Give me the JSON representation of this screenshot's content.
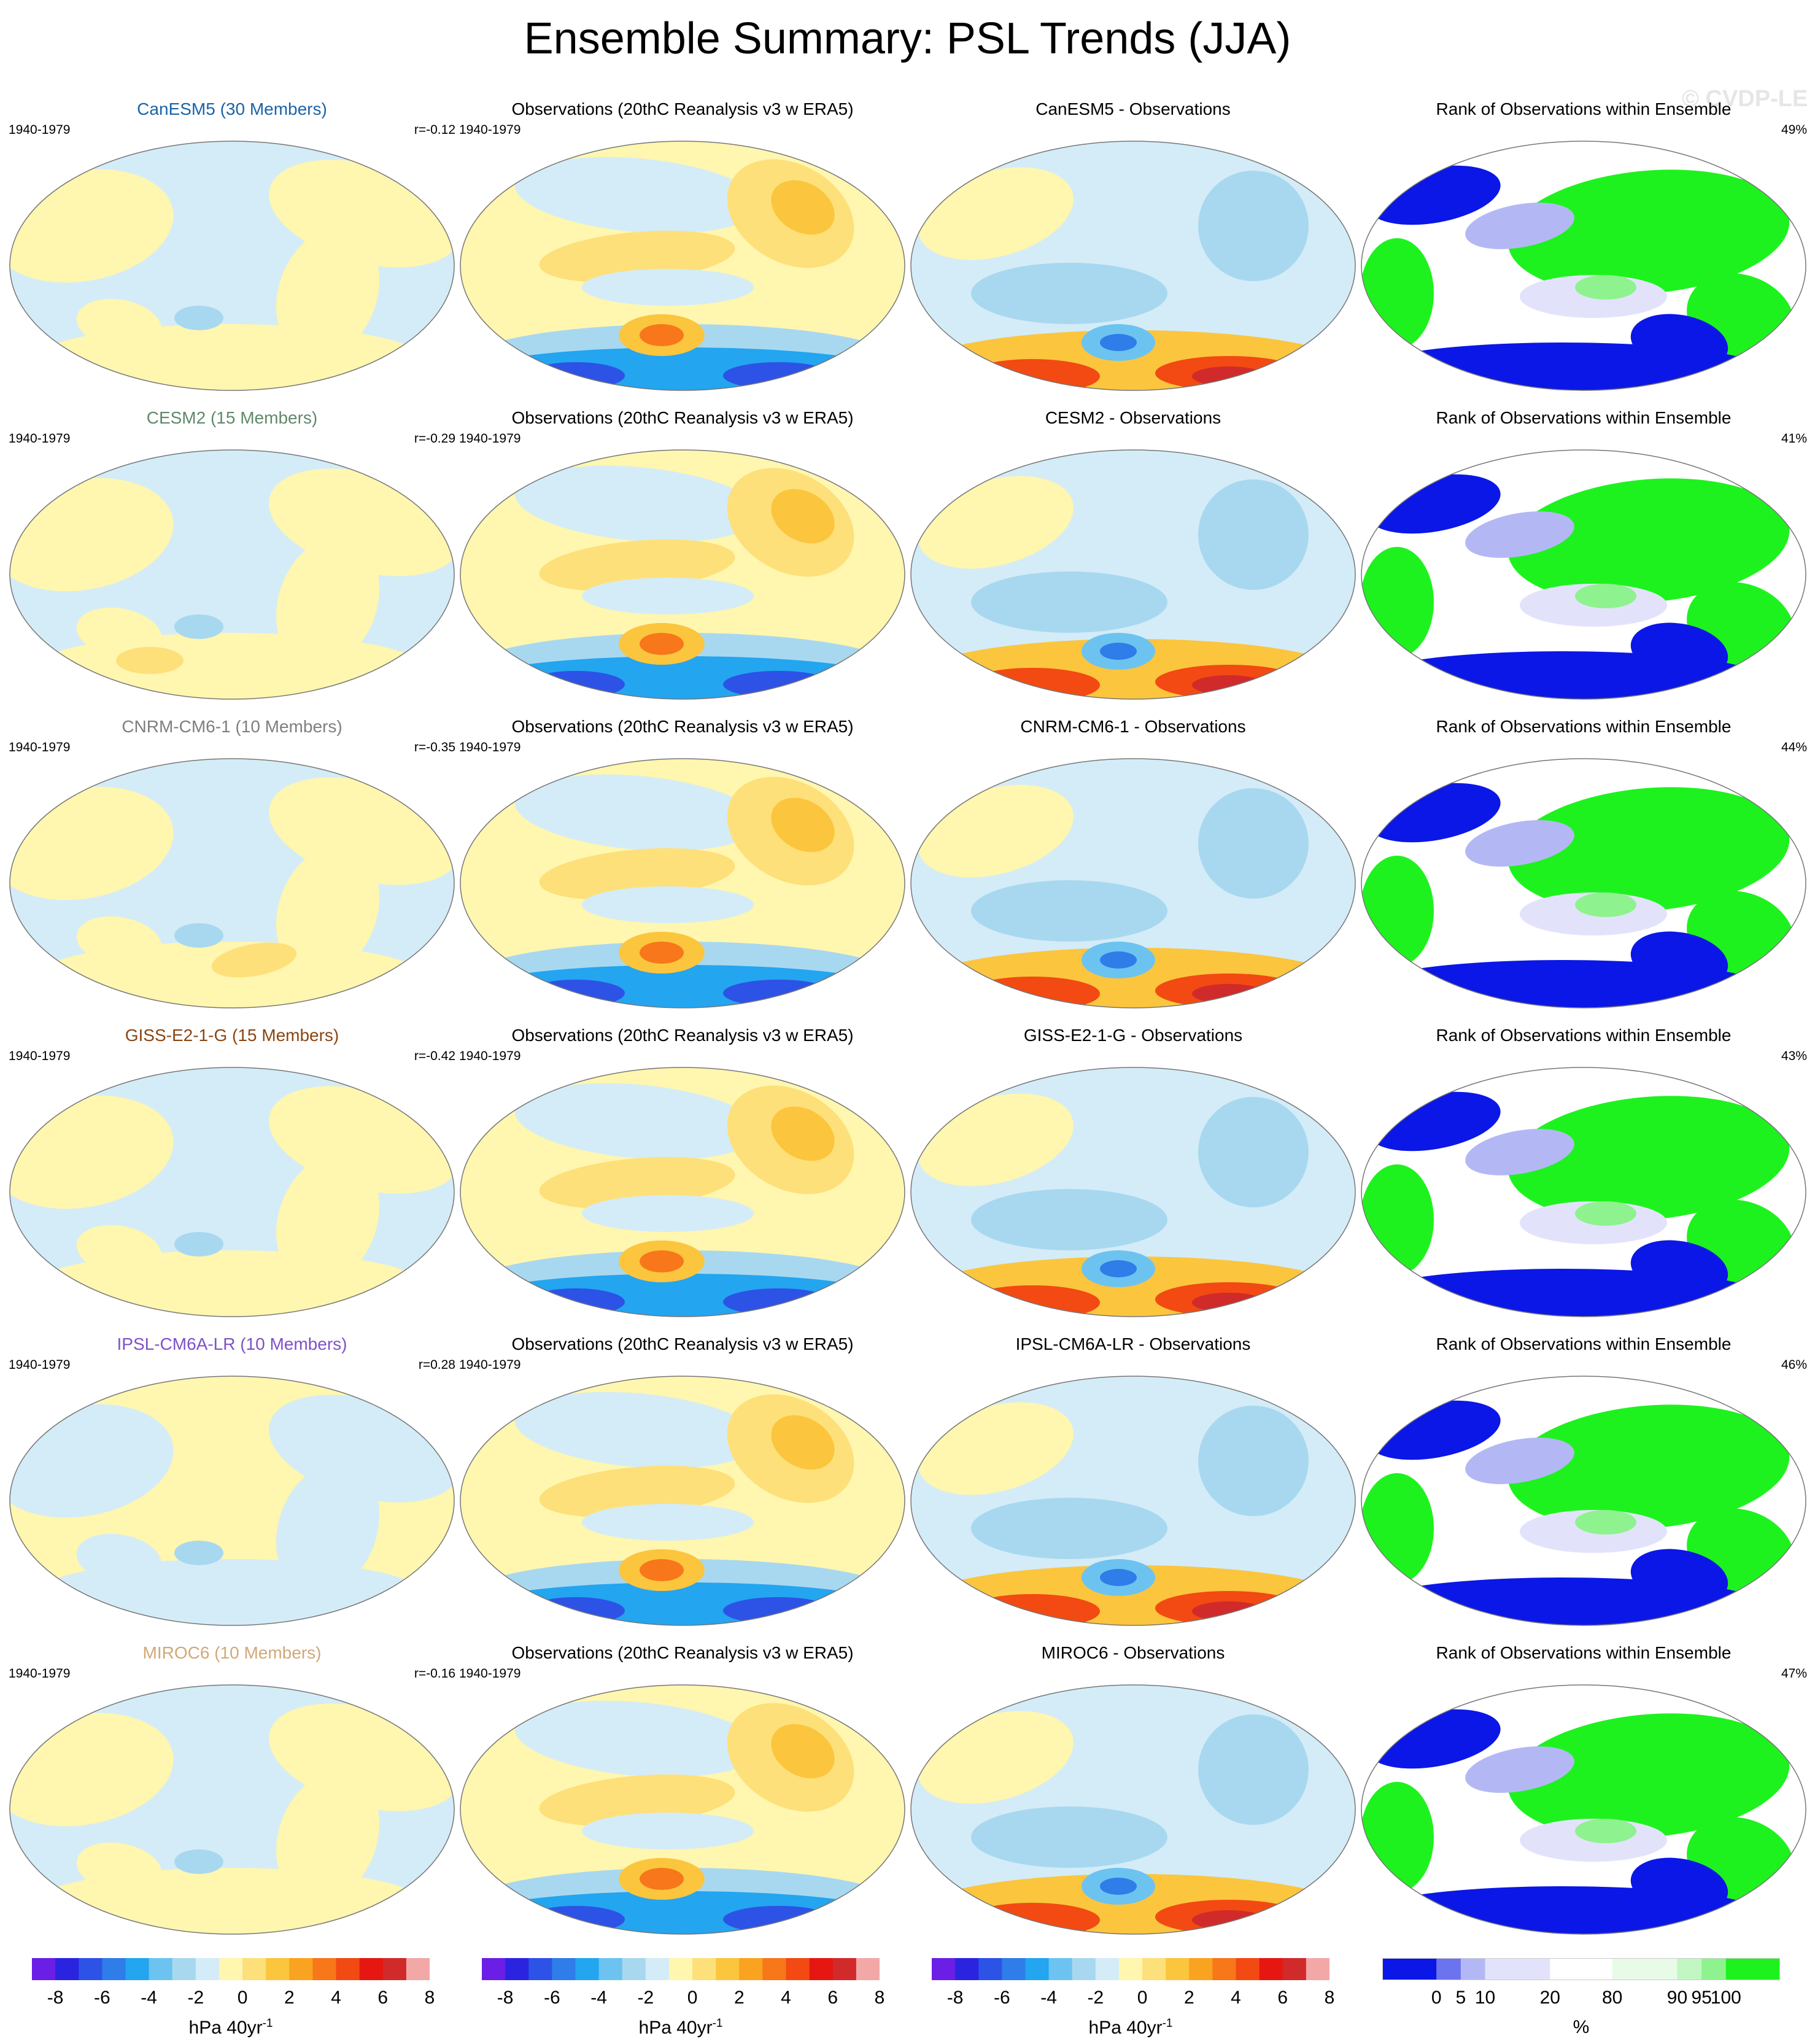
{
  "figure": {
    "title": "Ensemble Summary: PSL Trends (JJA)",
    "watermark": "© CVDP-LE"
  },
  "colors": {
    "trend_palette": [
      "#6a1ee6",
      "#2a24e0",
      "#2d52e6",
      "#2e7de8",
      "#23a5f0",
      "#6cc3f0",
      "#a8d8f0",
      "#d4ecf7",
      "#fff6b0",
      "#fde07a",
      "#fbc53e",
      "#f9a321",
      "#f7771a",
      "#f24a12",
      "#e61712",
      "#d12a2a",
      "#f3a8a8"
    ],
    "rank_palette": [
      "#0b17e6",
      "#6b73ee",
      "#b3b8f5",
      "#e2e3fb",
      "#ffffff",
      "#e7fbe7",
      "#c2f6c2",
      "#8ef28e",
      "#1ef21e"
    ],
    "model_titles": [
      "#1a63a8",
      "#5f8a6a",
      "#7f7f7f",
      "#8b4512",
      "#7d52c7",
      "#d2a877"
    ]
  },
  "rows": [
    {
      "model": "CanESM5 (30 Members)",
      "corr": "r=-0.12",
      "diff_title": "CanESM5 - Observations",
      "rank_pct": "49%"
    },
    {
      "model": "CESM2 (15 Members)",
      "corr": "r=-0.29",
      "diff_title": "CESM2 - Observations",
      "rank_pct": "41%"
    },
    {
      "model": "CNRM-CM6-1 (10 Members)",
      "corr": "r=-0.35",
      "diff_title": "CNRM-CM6-1 - Observations",
      "rank_pct": "44%"
    },
    {
      "model": "GISS-E2-1-G (15 Members)",
      "corr": "r=-0.42",
      "diff_title": "GISS-E2-1-G - Observations",
      "rank_pct": "43%"
    },
    {
      "model": "IPSL-CM6A-LR (10 Members)",
      "corr": "r=0.28",
      "diff_title": "IPSL-CM6A-LR - Observations",
      "rank_pct": "46%"
    },
    {
      "model": "MIROC6 (10 Members)",
      "corr": "r=-0.16",
      "diff_title": "MIROC6 - Observations",
      "rank_pct": "47%"
    }
  ],
  "common": {
    "period": "1940-1979",
    "obs_title": "Observations (20thC Reanalysis v3 w ERA5)",
    "rank_title": "Rank of Observations within Ensemble"
  },
  "colorbars": {
    "trend_ticks": [
      "-8",
      "-6",
      "-4",
      "-2",
      "0",
      "2",
      "4",
      "6",
      "8"
    ],
    "trend_unit": "hPa 40yr",
    "trend_unit_exp": "-1",
    "rank_ticks": [
      "0",
      "5",
      "10",
      "20",
      "80",
      "90",
      "95",
      "100"
    ],
    "rank_unit": "%"
  }
}
